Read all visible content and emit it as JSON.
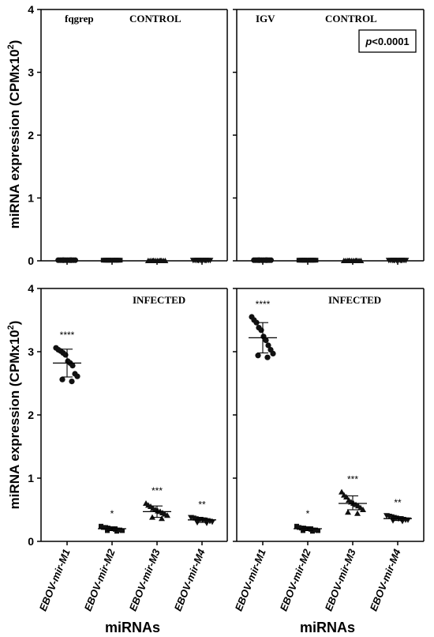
{
  "figure": {
    "ylabel": "miRNA expression (CPMx10",
    "ylabel_sup": "2",
    "ylabel_close": ")",
    "xlabel": "miRNAs"
  },
  "chart_data": [
    {
      "type": "scatter",
      "panel": "top-left",
      "labels": [
        "fqgrep",
        "CONTROL"
      ],
      "categories": [
        "EBOV-mir-M1",
        "EBOV-mir-M2",
        "EBOV-mir-M3",
        "EBOV-mir-M4"
      ],
      "yticks": [
        "0",
        "1",
        "2",
        "3",
        "4"
      ],
      "ylim": [
        0,
        4
      ],
      "series": [
        {
          "values": [
            0.01,
            0.01,
            0.01,
            0.01,
            0.01,
            0.01,
            0.01,
            0.01,
            0.01,
            0.01,
            0.01,
            0.01
          ]
        },
        {
          "values": [
            0.01,
            0.01,
            0.01,
            0.01,
            0.01,
            0.01,
            0.01,
            0.01,
            0.01,
            0.01,
            0.01,
            0.01
          ]
        },
        {
          "values": [
            0.0,
            0.0,
            0.0,
            0.0,
            0.0,
            0.0,
            0.0,
            0.0,
            0.0,
            0.0,
            0.0,
            0.0
          ]
        },
        {
          "values": [
            0.01,
            0.01,
            0.01,
            0.01,
            0.01,
            0.01,
            0.01,
            0.01,
            0.01,
            0.01,
            0.01,
            0.01
          ]
        }
      ],
      "markers": [
        "circle",
        "square",
        "triangle-up",
        "triangle-down"
      ],
      "significance": [
        "",
        "",
        "",
        ""
      ]
    },
    {
      "type": "scatter",
      "panel": "top-right",
      "labels": [
        "IGV",
        "CONTROL"
      ],
      "annotation_box": "p<0.0001",
      "categories": [
        "EBOV-mir-M1",
        "EBOV-mir-M2",
        "EBOV-mir-M3",
        "EBOV-mir-M4"
      ],
      "yticks": [
        "",
        "",
        "",
        "",
        ""
      ],
      "ylim": [
        0,
        4
      ],
      "series": [
        {
          "values": [
            0.01,
            0.01,
            0.01,
            0.01,
            0.01,
            0.01,
            0.01,
            0.01,
            0.01,
            0.01,
            0.01,
            0.01
          ]
        },
        {
          "values": [
            0.01,
            0.01,
            0.01,
            0.01,
            0.01,
            0.01,
            0.01,
            0.01,
            0.01,
            0.01,
            0.01,
            0.01
          ]
        },
        {
          "values": [
            0.0,
            0.0,
            0.0,
            0.0,
            0.0,
            0.0,
            0.0,
            0.0,
            0.0,
            0.0,
            0.0,
            0.0
          ]
        },
        {
          "values": [
            0.01,
            0.01,
            0.01,
            0.01,
            0.01,
            0.01,
            0.01,
            0.01,
            0.01,
            0.01,
            0.01,
            0.01
          ]
        }
      ],
      "markers": [
        "circle",
        "square",
        "triangle-up",
        "triangle-down"
      ],
      "significance": [
        "",
        "",
        "",
        ""
      ]
    },
    {
      "type": "scatter",
      "panel": "bottom-left",
      "labels": [
        "",
        "INFECTED"
      ],
      "categories": [
        "EBOV-mir-M1",
        "EBOV-mir-M2",
        "EBOV-mir-M3",
        "EBOV-mir-M4"
      ],
      "yticks": [
        "0",
        "1",
        "2",
        "3",
        "4"
      ],
      "ylim": [
        0,
        4
      ],
      "series": [
        {
          "values": [
            3.06,
            3.03,
            3.01,
            2.98,
            2.95,
            2.85,
            2.82,
            2.78,
            2.65,
            2.61,
            2.56,
            2.53
          ]
        },
        {
          "values": [
            0.24,
            0.22,
            0.22,
            0.21,
            0.2,
            0.2,
            0.19,
            0.18,
            0.18,
            0.17,
            0.17,
            0.16
          ]
        },
        {
          "values": [
            0.6,
            0.57,
            0.55,
            0.52,
            0.5,
            0.48,
            0.47,
            0.45,
            0.43,
            0.41,
            0.38,
            0.36
          ]
        },
        {
          "values": [
            0.38,
            0.37,
            0.36,
            0.35,
            0.35,
            0.34,
            0.33,
            0.33,
            0.32,
            0.31,
            0.3,
            0.29
          ]
        }
      ],
      "center": [
        2.82,
        0.2,
        0.47,
        0.34
      ],
      "error": [
        [
          2.6,
          3.04
        ],
        [
          0.17,
          0.23
        ],
        [
          0.38,
          0.56
        ],
        [
          0.3,
          0.37
        ]
      ],
      "markers": [
        "circle",
        "square",
        "triangle-up",
        "triangle-down"
      ],
      "significance": [
        "****",
        "*",
        "***",
        "**"
      ]
    },
    {
      "type": "scatter",
      "panel": "bottom-right",
      "labels": [
        "",
        "INFECTED"
      ],
      "categories": [
        "EBOV-mir-M1",
        "EBOV-mir-M2",
        "EBOV-mir-M3",
        "EBOV-mir-M4"
      ],
      "yticks": [
        "",
        "",
        "",
        "",
        ""
      ],
      "ylim": [
        0,
        4
      ],
      "series": [
        {
          "values": [
            3.55,
            3.5,
            3.46,
            3.38,
            3.34,
            3.24,
            3.18,
            3.1,
            3.03,
            2.97,
            2.94,
            2.91
          ]
        },
        {
          "values": [
            0.24,
            0.22,
            0.21,
            0.21,
            0.2,
            0.2,
            0.19,
            0.18,
            0.18,
            0.17,
            0.17,
            0.16
          ]
        },
        {
          "values": [
            0.78,
            0.73,
            0.7,
            0.65,
            0.62,
            0.6,
            0.58,
            0.56,
            0.53,
            0.5,
            0.46,
            0.44
          ]
        },
        {
          "values": [
            0.41,
            0.4,
            0.39,
            0.38,
            0.37,
            0.36,
            0.36,
            0.35,
            0.34,
            0.34,
            0.33,
            0.32
          ]
        }
      ],
      "center": [
        3.22,
        0.2,
        0.6,
        0.36
      ],
      "error": [
        [
          2.98,
          3.46
        ],
        [
          0.17,
          0.23
        ],
        [
          0.5,
          0.72
        ],
        [
          0.33,
          0.39
        ]
      ],
      "markers": [
        "circle",
        "square",
        "triangle-up",
        "triangle-down"
      ],
      "significance": [
        "****",
        "*",
        "***",
        "**"
      ]
    }
  ],
  "colors": {
    "ink": "#000000",
    "marker": "#111111"
  }
}
